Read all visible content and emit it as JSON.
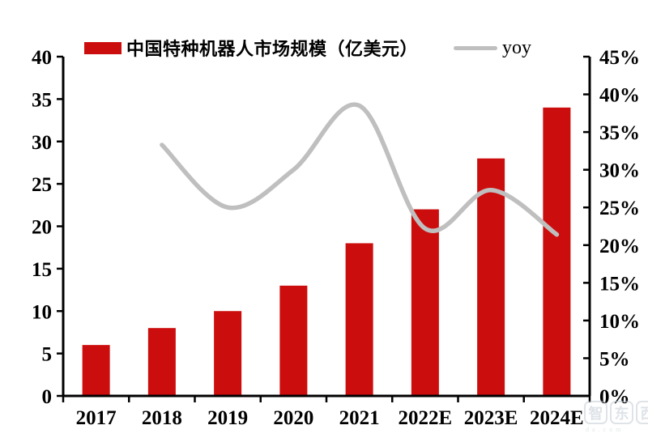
{
  "chart_data": {
    "type": "combo-bar-line",
    "categories": [
      "2017",
      "2018",
      "2019",
      "2020",
      "2021",
      "2022E",
      "2023E",
      "2024E"
    ],
    "series": [
      {
        "name": "中国特种机器人市场规模（亿美元）",
        "type": "bar",
        "axis": "left",
        "color": "#CC0D0D",
        "values": [
          6,
          8,
          10,
          13,
          18,
          22,
          28,
          34
        ]
      },
      {
        "name": "yoy",
        "type": "line",
        "axis": "right",
        "color": "#BFBFBF",
        "values": [
          null,
          33.3,
          25.0,
          30.0,
          38.5,
          22.2,
          27.3,
          21.4
        ]
      }
    ],
    "left_axis": {
      "min": 0,
      "max": 40,
      "step": 5,
      "tick_labels": [
        "0",
        "5",
        "10",
        "15",
        "20",
        "25",
        "30",
        "35",
        "40"
      ]
    },
    "right_axis": {
      "min": 0,
      "max": 45,
      "step": 5,
      "tick_labels": [
        "0%",
        "5%",
        "10%",
        "15%",
        "20%",
        "25%",
        "30%",
        "35%",
        "40%",
        "45%"
      ]
    },
    "legend_position": "top",
    "grid": false,
    "axis_color": "#000000",
    "text_color": "#000000"
  },
  "watermark": {
    "chars": [
      "智",
      "东",
      "西"
    ],
    "subtext": "da.com"
  }
}
